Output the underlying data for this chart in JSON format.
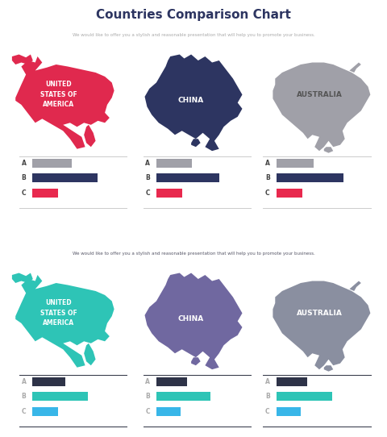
{
  "title": "Countries Comparison Chart",
  "subtitle": "We would like to offer you a stylish and reasonable presentation that will help you to promote your business.",
  "slide1": {
    "bg_color": "#f0f0f0",
    "title_color": "#2d3561",
    "subtitle_color": "#aaaaaa",
    "country_colors": [
      "#e0294e",
      "#2d3561",
      "#a0a0a8"
    ],
    "bar_colors_A": "#a0a0a8",
    "bar_colors_B": "#2d3561",
    "bar_colors_C": "#e8294e",
    "bar_values": [
      [
        0.42,
        0.7,
        0.28
      ],
      [
        0.38,
        0.68,
        0.28
      ],
      [
        0.4,
        0.72,
        0.28
      ]
    ],
    "label_color": "#444444",
    "line_color": "#cccccc",
    "text_colors": [
      "#ffffff",
      "#ffffff",
      "#666666"
    ]
  },
  "slide2": {
    "bg_color": "#1a1f2e",
    "title_color": "#ffffff",
    "subtitle_color": "#555566",
    "country_colors": [
      "#2ec4b6",
      "#7068a0",
      "#8a8fa0"
    ],
    "bar_colors_A": "#2e3348",
    "bar_colors_B": "#2ec4b6",
    "bar_colors_C": "#38b6e8",
    "bar_values": [
      [
        0.35,
        0.6,
        0.28
      ],
      [
        0.33,
        0.58,
        0.26
      ],
      [
        0.33,
        0.6,
        0.26
      ]
    ],
    "label_color": "#aaaaaa",
    "line_color": "#2a2f40",
    "text_colors": [
      "#000000",
      "#000000",
      "#ffffff"
    ]
  }
}
